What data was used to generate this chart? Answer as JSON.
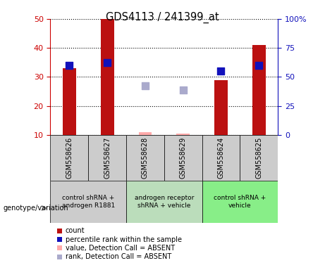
{
  "title": "GDS4113 / 241399_at",
  "samples": [
    "GSM558626",
    "GSM558627",
    "GSM558628",
    "GSM558629",
    "GSM558624",
    "GSM558625"
  ],
  "x_positions": [
    0,
    1,
    2,
    3,
    4,
    5
  ],
  "count_values": [
    33,
    50,
    null,
    null,
    29,
    41
  ],
  "count_absent_values": [
    null,
    null,
    11,
    10.5,
    null,
    null
  ],
  "percentile_values": [
    34,
    35,
    null,
    null,
    32,
    34
  ],
  "percentile_absent_values": [
    null,
    null,
    27,
    25.5,
    null,
    null
  ],
  "ylim": [
    10,
    50
  ],
  "y2lim": [
    0,
    100
  ],
  "yticks": [
    10,
    20,
    30,
    40,
    50
  ],
  "y2ticks": [
    0,
    25,
    50,
    75,
    100
  ],
  "y2ticklabels": [
    "0",
    "25",
    "50",
    "75",
    "100%"
  ],
  "bar_color": "#bb1111",
  "bar_absent_color": "#ffaaaa",
  "dot_color": "#1111bb",
  "dot_absent_color": "#aaaacc",
  "bar_width": 0.35,
  "dot_size": 55,
  "genotype_groups": [
    {
      "label": "control shRNA +\nandrogen R1881",
      "color": "#cccccc",
      "cols": [
        0,
        1
      ]
    },
    {
      "label": "androgen receptor\nshRNA + vehicle",
      "color": "#bbddbb",
      "cols": [
        2,
        3
      ]
    },
    {
      "label": "control shRNA +\nvehicle",
      "color": "#88ee88",
      "cols": [
        4,
        5
      ]
    }
  ],
  "legend_items": [
    {
      "label": "count",
      "color": "#bb1111"
    },
    {
      "label": "percentile rank within the sample",
      "color": "#1111bb"
    },
    {
      "label": "value, Detection Call = ABSENT",
      "color": "#ffaaaa"
    },
    {
      "label": "rank, Detection Call = ABSENT",
      "color": "#aaaacc"
    }
  ],
  "left_axis_color": "#cc0000",
  "right_axis_color": "#1111bb",
  "sample_box_color": "#cccccc",
  "genotype_label": "genotype/variation"
}
